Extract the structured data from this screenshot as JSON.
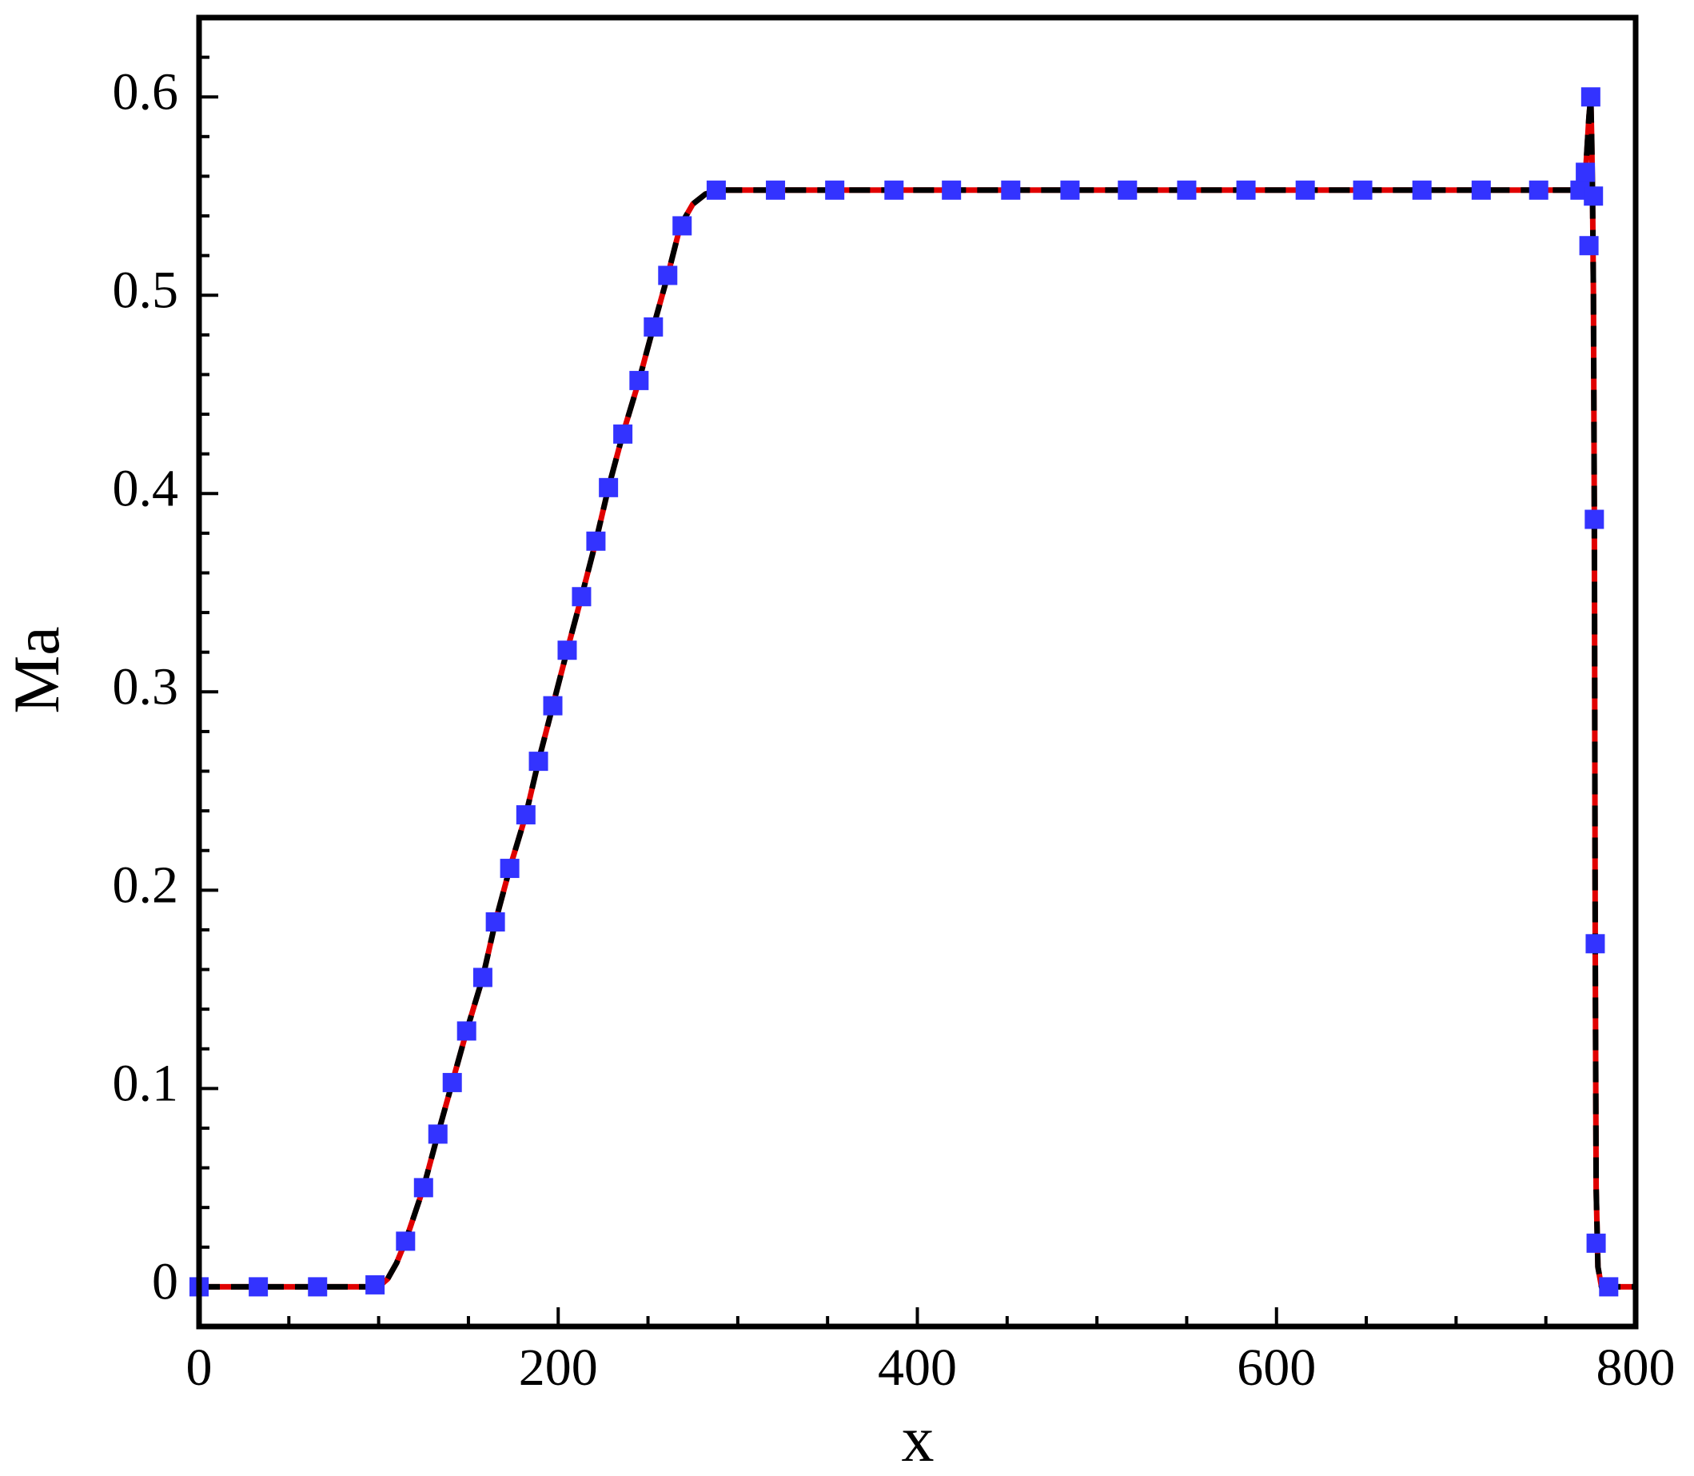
{
  "chart_data": {
    "type": "line",
    "xlabel": "x",
    "ylabel": "Ma",
    "xlim": [
      0,
      800
    ],
    "ylim": [
      -0.02,
      0.64
    ],
    "xticks": [
      0,
      200,
      400,
      600,
      800
    ],
    "xminorticks": [
      50,
      100,
      150,
      250,
      300,
      350,
      450,
      500,
      550,
      650,
      700,
      750
    ],
    "yticks": [
      0,
      0.1,
      0.2,
      0.3,
      0.4,
      0.5,
      0.6
    ],
    "yminorticks": [
      0.02,
      0.04,
      0.06,
      0.08,
      0.12,
      0.14,
      0.16,
      0.18,
      0.22,
      0.24,
      0.26,
      0.28,
      0.32,
      0.34,
      0.36,
      0.38,
      0.42,
      0.44,
      0.46,
      0.48,
      0.52,
      0.54,
      0.56,
      0.58,
      0.62
    ],
    "series": [
      {
        "color": "#e00000",
        "style": "solid",
        "x": [
          0,
          100,
          105,
          110,
          115,
          125,
          133,
          141,
          149,
          158,
          165,
          173,
          182,
          189,
          197,
          205,
          213,
          221,
          228,
          236,
          245,
          253,
          261,
          268,
          275,
          282,
          290,
          770,
          772,
          774,
          775,
          775.5,
          776,
          776.5,
          777,
          777.5,
          778,
          779,
          781,
          800
        ],
        "values": [
          0,
          0,
          0.004,
          0.012,
          0.023,
          0.05,
          0.077,
          0.103,
          0.129,
          0.156,
          0.184,
          0.211,
          0.238,
          0.265,
          0.293,
          0.321,
          0.348,
          0.376,
          0.403,
          0.43,
          0.457,
          0.484,
          0.51,
          0.535,
          0.546,
          0.551,
          0.553,
          0.553,
          0.56,
          0.59,
          0.6,
          0.58,
          0.55,
          0.5,
          0.387,
          0.173,
          0.05,
          0.01,
          0,
          0
        ]
      },
      {
        "color": "#000000",
        "style": "dashed",
        "x": [
          0,
          100,
          105,
          110,
          115,
          125,
          133,
          141,
          149,
          158,
          165,
          173,
          182,
          189,
          197,
          205,
          213,
          221,
          228,
          236,
          245,
          253,
          261,
          268,
          275,
          282,
          290,
          770,
          772,
          774,
          775,
          775.5,
          776,
          776.5,
          777,
          777.5,
          778,
          779,
          781,
          800
        ],
        "values": [
          0,
          0,
          0.004,
          0.012,
          0.023,
          0.05,
          0.077,
          0.103,
          0.129,
          0.156,
          0.184,
          0.211,
          0.238,
          0.265,
          0.293,
          0.321,
          0.348,
          0.376,
          0.403,
          0.43,
          0.457,
          0.484,
          0.51,
          0.535,
          0.546,
          0.551,
          0.553,
          0.553,
          0.56,
          0.59,
          0.6,
          0.58,
          0.55,
          0.5,
          0.387,
          0.173,
          0.05,
          0.01,
          0,
          0
        ]
      },
      {
        "color": "#3333ff",
        "style": "markers",
        "x": [
          0,
          33,
          66,
          98,
          115,
          125,
          133,
          141,
          149,
          158,
          165,
          173,
          182,
          189,
          197,
          205,
          213,
          221,
          228,
          236,
          245,
          253,
          261,
          269,
          288,
          321,
          354,
          387,
          419,
          452,
          485,
          517,
          550,
          583,
          616,
          648,
          681,
          714,
          746,
          769,
          772,
          775,
          776.5,
          774,
          777,
          777.5,
          778,
          785
        ],
        "values": [
          0,
          0,
          0,
          0.001,
          0.023,
          0.05,
          0.077,
          0.103,
          0.129,
          0.156,
          0.184,
          0.211,
          0.238,
          0.265,
          0.293,
          0.321,
          0.348,
          0.376,
          0.403,
          0.43,
          0.457,
          0.484,
          0.51,
          0.535,
          0.553,
          0.553,
          0.553,
          0.553,
          0.553,
          0.553,
          0.553,
          0.553,
          0.553,
          0.553,
          0.553,
          0.553,
          0.553,
          0.553,
          0.553,
          0.553,
          0.562,
          0.6,
          0.55,
          0.525,
          0.387,
          0.173,
          0.022,
          0
        ]
      }
    ]
  }
}
